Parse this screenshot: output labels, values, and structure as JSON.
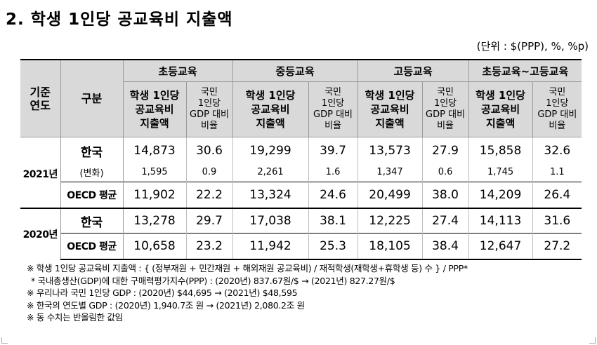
{
  "title": "2. 학생 1인당 공교육비 지출액",
  "unit": "(단위 : $(PPP), %, %p)",
  "header": {
    "year_col": "기준\n연도",
    "category_col": "구분",
    "groups": [
      "초등교육",
      "중등교육",
      "고등교육",
      "초등교육~고등교육"
    ],
    "sub_expenditure": "학생 1인당\n공교육비\n지출액",
    "sub_gdp_ratio": "국민\n1인당\nGDP 대비\n비율"
  },
  "rows": {
    "y2021": {
      "year": "2021년",
      "korea": {
        "label": "한국",
        "values": [
          "14,873",
          "30.6",
          "19,299",
          "39.7",
          "13,573",
          "27.9",
          "15,858",
          "32.6"
        ]
      },
      "change": {
        "label": "(변화)",
        "values": [
          "1,595",
          "0.9",
          "2,261",
          "1.6",
          "1,347",
          "0.6",
          "1,745",
          "1.1"
        ]
      },
      "oecd": {
        "label": "OECD 평균",
        "values": [
          "11,902",
          "22.2",
          "13,324",
          "24.6",
          "20,499",
          "38.0",
          "14,209",
          "26.4"
        ]
      }
    },
    "y2020": {
      "year": "2020년",
      "korea": {
        "label": "한국",
        "values": [
          "13,278",
          "29.7",
          "17,038",
          "38.1",
          "12,225",
          "27.4",
          "14,113",
          "31.6"
        ]
      },
      "oecd": {
        "label": "OECD 평균",
        "values": [
          "10,658",
          "23.2",
          "11,942",
          "25.3",
          "18,105",
          "38.4",
          "12,647",
          "27.2"
        ]
      }
    }
  },
  "notes": [
    "※ 학생 1인당 공교육비 지출액 : { (정부재원 + 민간재원 + 해외재원 공교육비) / 재적학생(재학생+휴학생 등) 수 } / PPP*",
    "* 국내총생산(GDP)에 대한 구매력평가지수(PPP) : (2020년) 837.67원/$ → (2021년) 827.27원/$",
    "※ 우리나라 국민 1인당 GDP : (2020년) $44,695 → (2021년) $48,595",
    "※ 한국의 연도별 GDP : (2020년) 1,940.7조 원 → (2021년) 2,080.2조 원",
    "※ 동 수치는 반올림한 값임"
  ]
}
